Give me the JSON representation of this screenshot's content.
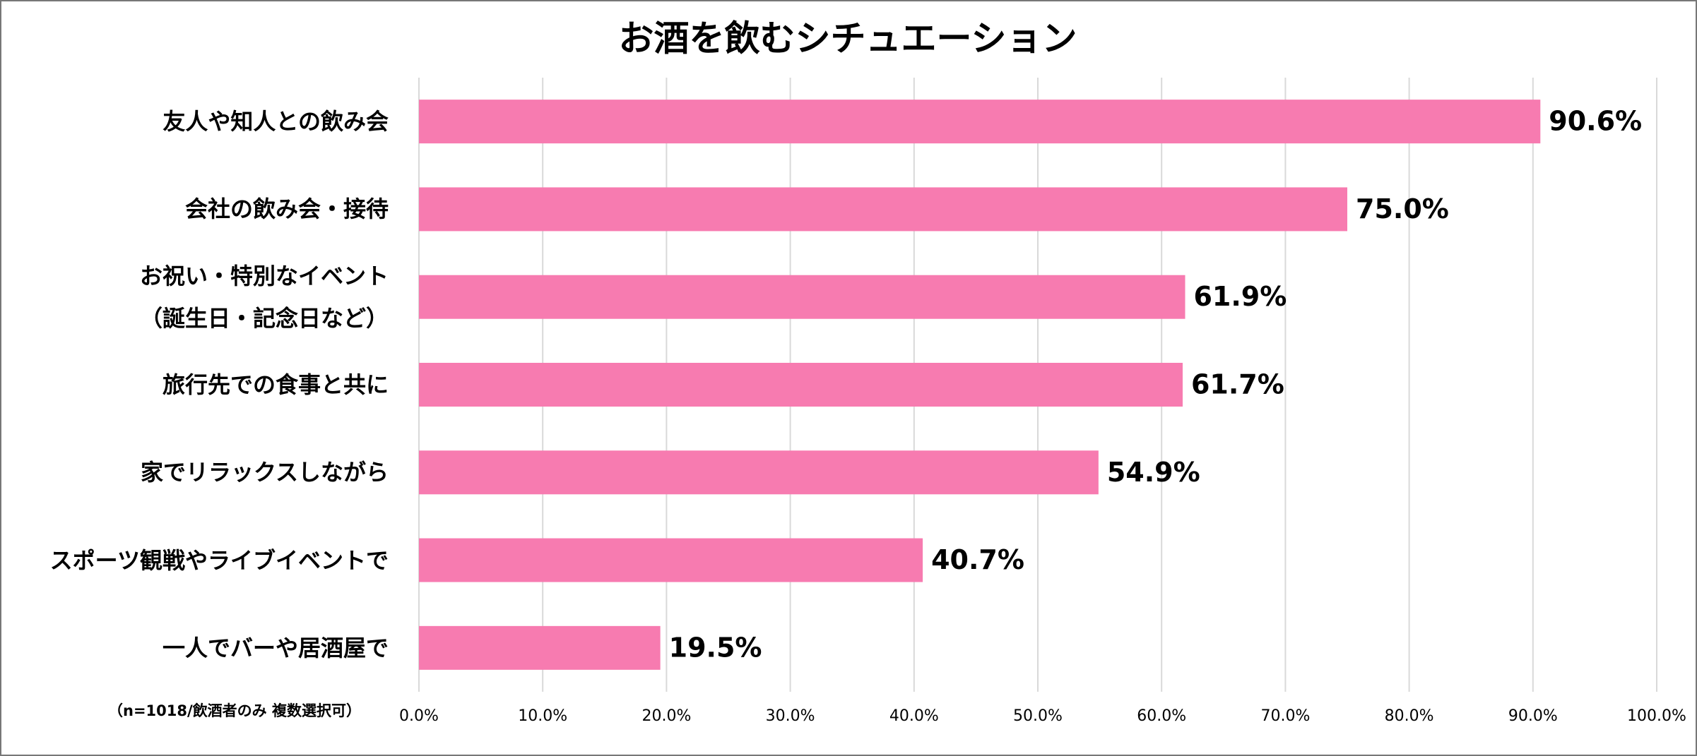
{
  "chart_data": {
    "type": "bar",
    "orientation": "horizontal",
    "title": "お酒を飲むシチュエーション",
    "note": "（n=1018/飲酒者のみ 複数選択可）",
    "categories": [
      "友人や知人との飲み会",
      "会社の飲み会・接待",
      "お祝い・特別なイベント\n（誕生日・記念日など）",
      "旅行先での食事と共に",
      "家でリラックスしながら",
      "スポーツ観戦やライブイベントで",
      "一人でバーや居酒屋で"
    ],
    "values": [
      90.6,
      75.0,
      61.9,
      61.7,
      54.9,
      40.7,
      19.5
    ],
    "value_labels": [
      "90.6%",
      "75.0%",
      "61.9%",
      "61.7%",
      "54.9%",
      "40.7%",
      "19.5%"
    ],
    "color": "#f77bb0",
    "xlim": [
      0,
      100
    ],
    "xticks": [
      {
        "value": 0,
        "label": "0.0%"
      },
      {
        "value": 10,
        "label": "10.0%"
      },
      {
        "value": 20,
        "label": "20.0%"
      },
      {
        "value": 30,
        "label": "30.0%"
      },
      {
        "value": 40,
        "label": "40.0%"
      },
      {
        "value": 50,
        "label": "50.0%"
      },
      {
        "value": 60,
        "label": "60.0%"
      },
      {
        "value": 70,
        "label": "70.0%"
      },
      {
        "value": 80,
        "label": "80.0%"
      },
      {
        "value": 90,
        "label": "90.0%"
      },
      {
        "value": 100,
        "label": "100.0%"
      }
    ],
    "grid": true
  }
}
